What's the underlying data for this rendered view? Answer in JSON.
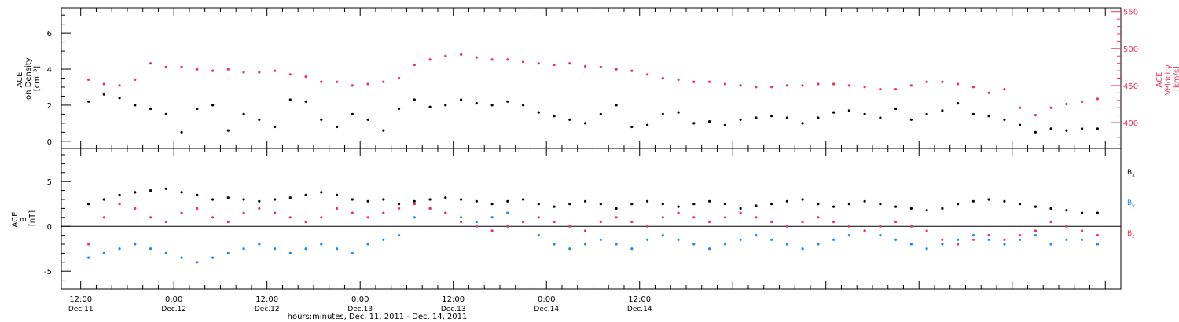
{
  "chart_data": [
    {
      "type": "scatter",
      "panel": "top",
      "ylabel_left": [
        "ACE",
        "Ion Density",
        "[cm⁻³]"
      ],
      "ylabel_right": [
        "ACE",
        "Velocity",
        "[km/s]"
      ],
      "left_axis": {
        "ylim": [
          -0.4,
          7.4
        ],
        "ticks": [
          0,
          2,
          4,
          6
        ],
        "color": "#000000"
      },
      "right_axis": {
        "ylim": [
          365,
          555
        ],
        "ticks": [
          400,
          450,
          500,
          550
        ],
        "color": "#e8335a"
      },
      "series": [
        {
          "label": "Ion Density",
          "axis": "left",
          "color": "#000000",
          "x_hours": [
            1,
            3,
            5,
            7,
            9,
            11,
            13,
            15,
            17,
            19,
            21,
            23,
            25,
            27,
            29,
            31,
            33,
            35,
            37,
            39,
            41,
            43,
            45,
            47,
            49,
            51,
            53,
            55,
            57,
            59,
            61,
            63,
            65,
            67,
            69,
            71,
            73,
            75,
            77,
            79,
            81,
            83,
            85,
            87,
            89,
            91,
            93,
            95,
            97,
            99,
            101,
            103,
            105,
            107,
            109,
            111,
            113,
            115,
            117,
            119,
            121,
            123,
            125,
            127,
            129,
            131
          ],
          "y": [
            2.2,
            2.6,
            2.4,
            2.0,
            1.8,
            1.5,
            0.5,
            1.8,
            2.0,
            0.6,
            1.5,
            1.2,
            0.8,
            2.3,
            2.2,
            1.2,
            0.8,
            1.5,
            1.2,
            0.6,
            1.8,
            2.3,
            1.9,
            2.0,
            2.3,
            2.1,
            2.0,
            2.2,
            2.0,
            1.6,
            1.4,
            1.2,
            1.0,
            1.5,
            2.0,
            0.8,
            0.9,
            1.5,
            1.6,
            1.0,
            1.1,
            0.9,
            1.2,
            1.3,
            1.4,
            1.3,
            1.0,
            1.3,
            1.6,
            1.7,
            1.5,
            1.3,
            1.8,
            1.2,
            1.5,
            1.7,
            2.1,
            1.5,
            1.4,
            1.2,
            0.9,
            0.5,
            0.7,
            0.6,
            0.7,
            0.7
          ]
        },
        {
          "label": "Velocity",
          "axis": "right",
          "color": "#e8335a",
          "x_hours": [
            1,
            3,
            5,
            7,
            9,
            11,
            13,
            15,
            17,
            19,
            21,
            23,
            25,
            27,
            29,
            31,
            33,
            35,
            37,
            39,
            41,
            43,
            45,
            47,
            49,
            51,
            53,
            55,
            57,
            59,
            61,
            63,
            65,
            67,
            69,
            71,
            73,
            75,
            77,
            79,
            81,
            83,
            85,
            87,
            89,
            91,
            93,
            95,
            97,
            99,
            101,
            103,
            105,
            107,
            109,
            111,
            113,
            115,
            117,
            119,
            121,
            123,
            125,
            127,
            129,
            131
          ],
          "y": [
            458,
            452,
            450,
            458,
            480,
            475,
            475,
            472,
            470,
            472,
            468,
            468,
            470,
            465,
            462,
            455,
            455,
            450,
            452,
            455,
            460,
            478,
            485,
            490,
            492,
            488,
            485,
            485,
            482,
            480,
            478,
            480,
            476,
            475,
            472,
            470,
            465,
            460,
            458,
            455,
            455,
            452,
            450,
            448,
            448,
            450,
            450,
            452,
            452,
            450,
            448,
            445,
            445,
            450,
            455,
            455,
            452,
            448,
            440,
            445,
            420,
            410,
            420,
            425,
            428,
            432
          ]
        }
      ]
    },
    {
      "type": "scatter",
      "panel": "bottom",
      "ylabel_left": [
        "ACE",
        "B",
        "[nT]"
      ],
      "ylim": [
        -7,
        8.7
      ],
      "yticks": [
        -5,
        0,
        5
      ],
      "zero_line": true,
      "legend": [
        {
          "label": "B",
          "sub": "x",
          "color": "#000000"
        },
        {
          "label": "B",
          "sub": "y",
          "color": "#1e88e5"
        },
        {
          "label": "B",
          "sub": "z",
          "color": "#e8335a"
        }
      ],
      "series": [
        {
          "label": "Bx",
          "color": "#000000",
          "x_hours": [
            1,
            3,
            5,
            7,
            9,
            11,
            13,
            15,
            17,
            19,
            21,
            23,
            25,
            27,
            29,
            31,
            33,
            35,
            37,
            39,
            41,
            43,
            45,
            47,
            49,
            51,
            53,
            55,
            57,
            59,
            61,
            63,
            65,
            67,
            69,
            71,
            73,
            75,
            77,
            79,
            81,
            83,
            85,
            87,
            89,
            91,
            93,
            95,
            97,
            99,
            101,
            103,
            105,
            107,
            109,
            111,
            113,
            115,
            117,
            119,
            121,
            123,
            125,
            127,
            129,
            131
          ],
          "y": [
            2.5,
            3.0,
            3.5,
            3.8,
            4.0,
            4.2,
            3.8,
            3.5,
            3.0,
            3.2,
            3.0,
            2.8,
            3.0,
            3.2,
            3.5,
            3.8,
            3.5,
            3.0,
            2.8,
            3.0,
            2.5,
            2.8,
            3.0,
            3.2,
            3.0,
            2.8,
            2.5,
            2.8,
            3.0,
            2.5,
            2.2,
            2.5,
            2.8,
            2.5,
            2.0,
            2.5,
            2.8,
            2.5,
            2.2,
            2.5,
            2.8,
            2.5,
            2.0,
            2.3,
            2.5,
            2.8,
            3.0,
            2.5,
            2.2,
            2.5,
            2.8,
            2.5,
            2.2,
            2.0,
            1.8,
            2.0,
            2.5,
            2.8,
            3.0,
            2.8,
            2.5,
            2.2,
            2.0,
            1.8,
            1.5,
            1.5
          ]
        },
        {
          "label": "By",
          "color": "#1e88e5",
          "x_hours": [
            1,
            3,
            5,
            7,
            9,
            11,
            13,
            15,
            17,
            19,
            21,
            23,
            25,
            27,
            29,
            31,
            33,
            35,
            37,
            39,
            41,
            43,
            45,
            47,
            49,
            51,
            53,
            55,
            57,
            59,
            61,
            63,
            65,
            67,
            69,
            71,
            73,
            75,
            77,
            79,
            81,
            83,
            85,
            87,
            89,
            91,
            93,
            95,
            97,
            99,
            101,
            103,
            105,
            107,
            109,
            111,
            113,
            115,
            117,
            119,
            121,
            123,
            125,
            127,
            129,
            131
          ],
          "y": [
            -3.5,
            -3.0,
            -2.5,
            -2.0,
            -2.5,
            -3.0,
            -3.5,
            -4.0,
            -3.5,
            -3.0,
            -2.5,
            -2.0,
            -2.5,
            -3.0,
            -2.5,
            -2.0,
            -2.5,
            -3.0,
            -2.0,
            -1.5,
            -1.0,
            1.0,
            2.0,
            1.5,
            1.0,
            0.5,
            1.0,
            1.5,
            0.5,
            -1.0,
            -2.0,
            -2.5,
            -2.0,
            -1.5,
            -2.0,
            -2.5,
            -1.5,
            -1.0,
            -1.5,
            -2.0,
            -2.5,
            -2.0,
            -1.5,
            -1.0,
            -1.5,
            -2.0,
            -2.5,
            -2.0,
            -1.5,
            -1.0,
            -0.5,
            -1.0,
            -1.5,
            -2.0,
            -2.5,
            -2.0,
            -1.5,
            -1.0,
            -1.5,
            -2.0,
            -1.5,
            -1.0,
            -2.0,
            -1.5,
            -1.5,
            -2.0
          ]
        },
        {
          "label": "Bz",
          "color": "#e8335a",
          "x_hours": [
            1,
            3,
            5,
            7,
            9,
            11,
            13,
            15,
            17,
            19,
            21,
            23,
            25,
            27,
            29,
            31,
            33,
            35,
            37,
            39,
            41,
            43,
            45,
            47,
            49,
            51,
            53,
            55,
            57,
            59,
            61,
            63,
            65,
            67,
            69,
            71,
            73,
            75,
            77,
            79,
            81,
            83,
            85,
            87,
            89,
            91,
            93,
            95,
            97,
            99,
            101,
            103,
            105,
            107,
            109,
            111,
            113,
            115,
            117,
            119,
            121,
            123,
            125,
            127,
            129,
            131
          ],
          "y": [
            -2.0,
            1.0,
            2.5,
            2.0,
            1.0,
            0.5,
            1.5,
            2.0,
            1.0,
            0.5,
            1.5,
            2.0,
            1.5,
            1.0,
            0.5,
            1.0,
            2.0,
            1.5,
            1.0,
            1.5,
            2.0,
            2.5,
            2.0,
            1.5,
            0.5,
            0.0,
            -0.5,
            0.0,
            0.5,
            1.0,
            0.5,
            0.0,
            -0.5,
            0.5,
            1.0,
            0.5,
            0.0,
            1.0,
            1.5,
            1.0,
            0.5,
            1.0,
            1.5,
            1.0,
            0.5,
            0.0,
            0.5,
            1.0,
            0.5,
            0.0,
            -0.5,
            0.0,
            0.5,
            0.0,
            -0.5,
            -1.5,
            -2.0,
            -1.5,
            -1.0,
            -1.5,
            -1.0,
            -0.5,
            0.5,
            0.0,
            -0.5,
            -1.0
          ]
        }
      ]
    }
  ],
  "x_axis": {
    "range_hours": [
      -2.5,
      134
    ],
    "major_ticks": [
      {
        "hours": 0,
        "time": "12:00",
        "date": "Dec.11"
      },
      {
        "hours": 12,
        "time": "0:00",
        "date": "Dec.12"
      },
      {
        "hours": 24,
        "time": "12:00",
        "date": "Dec.12"
      },
      {
        "hours": 36,
        "time": "0:00",
        "date": "Dec.13"
      },
      {
        "hours": 48,
        "time": "12:00",
        "date": "Dec.13"
      },
      {
        "hours": 60,
        "time": "0:00",
        "date": "Dec.14"
      },
      {
        "hours": 72,
        "time": "12:00",
        "date": "Dec.14"
      }
    ],
    "title": "hours:minutes, Dec. 11, 2011 - Dec. 14, 2011"
  }
}
